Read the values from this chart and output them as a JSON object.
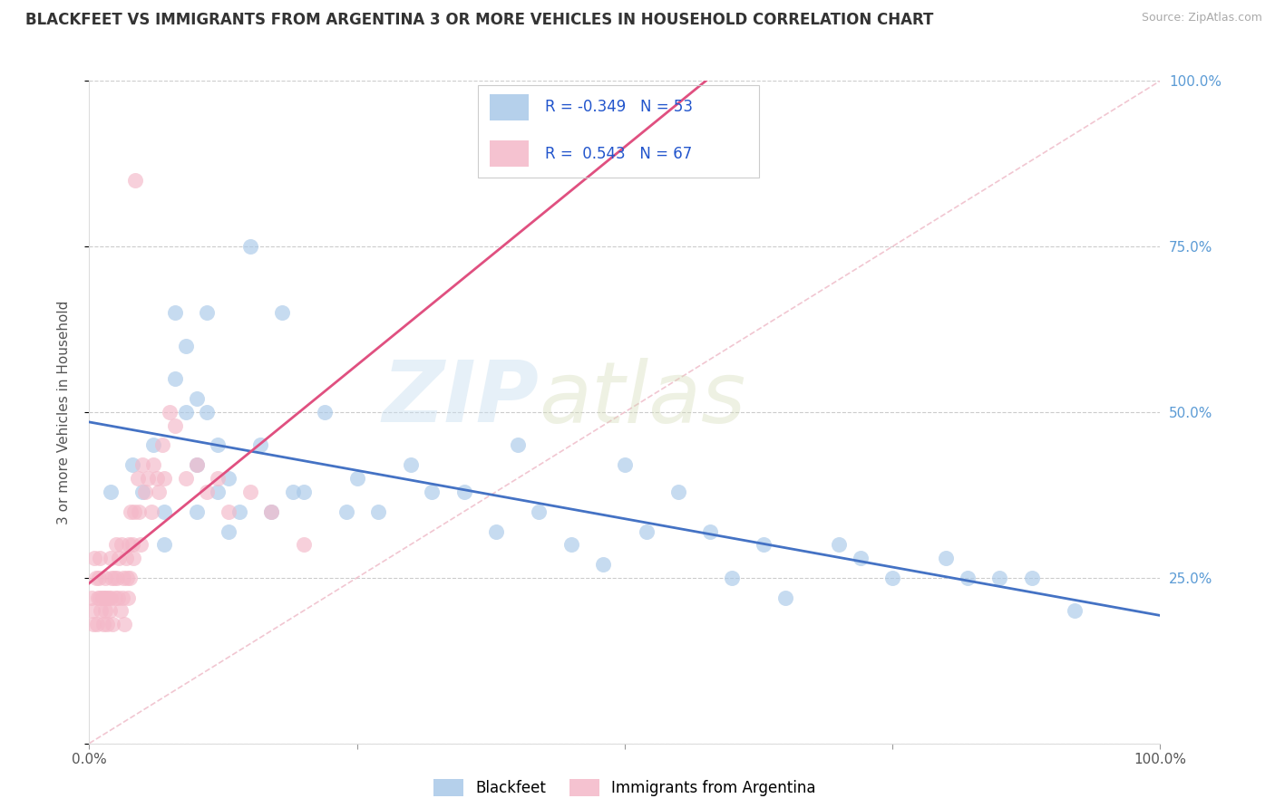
{
  "title": "BLACKFEET VS IMMIGRANTS FROM ARGENTINA 3 OR MORE VEHICLES IN HOUSEHOLD CORRELATION CHART",
  "source": "Source: ZipAtlas.com",
  "ylabel": "3 or more Vehicles in Household",
  "xlim": [
    0.0,
    1.0
  ],
  "ylim": [
    0.0,
    1.0
  ],
  "xticks": [
    0.0,
    0.25,
    0.5,
    0.75,
    1.0
  ],
  "xtick_labels": [
    "0.0%",
    "",
    "",
    "",
    "100.0%"
  ],
  "yticks": [
    0.0,
    0.25,
    0.5,
    0.75,
    1.0
  ],
  "ytick_labels": [
    "",
    "25.0%",
    "50.0%",
    "75.0%",
    "100.0%"
  ],
  "blue_color": "#a8c8e8",
  "pink_color": "#f4b8c8",
  "trend_blue": "#4472c4",
  "trend_pink": "#e05080",
  "diag_color": "#f0c0cc",
  "R_blue": -0.349,
  "N_blue": 53,
  "R_pink": 0.543,
  "N_pink": 67,
  "legend_label_blue": "Blackfeet",
  "legend_label_pink": "Immigrants from Argentina",
  "watermark1": "ZIP",
  "watermark2": "atlas",
  "blue_x": [
    0.02,
    0.04,
    0.05,
    0.06,
    0.07,
    0.07,
    0.08,
    0.08,
    0.09,
    0.09,
    0.1,
    0.1,
    0.1,
    0.11,
    0.11,
    0.12,
    0.12,
    0.13,
    0.13,
    0.14,
    0.15,
    0.16,
    0.17,
    0.18,
    0.19,
    0.2,
    0.22,
    0.24,
    0.25,
    0.27,
    0.3,
    0.32,
    0.35,
    0.38,
    0.4,
    0.42,
    0.45,
    0.48,
    0.5,
    0.52,
    0.55,
    0.58,
    0.6,
    0.63,
    0.65,
    0.7,
    0.72,
    0.75,
    0.8,
    0.82,
    0.85,
    0.88,
    0.92
  ],
  "blue_y": [
    0.38,
    0.42,
    0.38,
    0.45,
    0.3,
    0.35,
    0.55,
    0.65,
    0.6,
    0.5,
    0.42,
    0.52,
    0.35,
    0.5,
    0.65,
    0.45,
    0.38,
    0.4,
    0.32,
    0.35,
    0.75,
    0.45,
    0.35,
    0.65,
    0.38,
    0.38,
    0.5,
    0.35,
    0.4,
    0.35,
    0.42,
    0.38,
    0.38,
    0.32,
    0.45,
    0.35,
    0.3,
    0.27,
    0.42,
    0.32,
    0.38,
    0.32,
    0.25,
    0.3,
    0.22,
    0.3,
    0.28,
    0.25,
    0.28,
    0.25,
    0.25,
    0.25,
    0.2
  ],
  "pink_x": [
    0.002,
    0.003,
    0.004,
    0.005,
    0.006,
    0.007,
    0.008,
    0.009,
    0.01,
    0.01,
    0.011,
    0.012,
    0.013,
    0.014,
    0.015,
    0.015,
    0.016,
    0.017,
    0.018,
    0.019,
    0.02,
    0.02,
    0.021,
    0.022,
    0.023,
    0.024,
    0.025,
    0.026,
    0.027,
    0.028,
    0.029,
    0.03,
    0.031,
    0.032,
    0.033,
    0.034,
    0.035,
    0.036,
    0.037,
    0.038,
    0.039,
    0.04,
    0.041,
    0.042,
    0.043,
    0.045,
    0.046,
    0.048,
    0.05,
    0.052,
    0.055,
    0.058,
    0.06,
    0.063,
    0.065,
    0.068,
    0.07,
    0.075,
    0.08,
    0.09,
    0.1,
    0.11,
    0.12,
    0.13,
    0.15,
    0.17,
    0.2
  ],
  "pink_y": [
    0.22,
    0.2,
    0.18,
    0.28,
    0.25,
    0.18,
    0.22,
    0.25,
    0.22,
    0.28,
    0.2,
    0.22,
    0.18,
    0.22,
    0.2,
    0.25,
    0.22,
    0.18,
    0.22,
    0.2,
    0.28,
    0.22,
    0.25,
    0.18,
    0.25,
    0.22,
    0.3,
    0.25,
    0.22,
    0.28,
    0.2,
    0.3,
    0.22,
    0.25,
    0.18,
    0.28,
    0.25,
    0.22,
    0.3,
    0.25,
    0.35,
    0.3,
    0.28,
    0.35,
    0.85,
    0.4,
    0.35,
    0.3,
    0.42,
    0.38,
    0.4,
    0.35,
    0.42,
    0.4,
    0.38,
    0.45,
    0.4,
    0.5,
    0.48,
    0.4,
    0.42,
    0.38,
    0.4,
    0.35,
    0.38,
    0.35,
    0.3
  ]
}
